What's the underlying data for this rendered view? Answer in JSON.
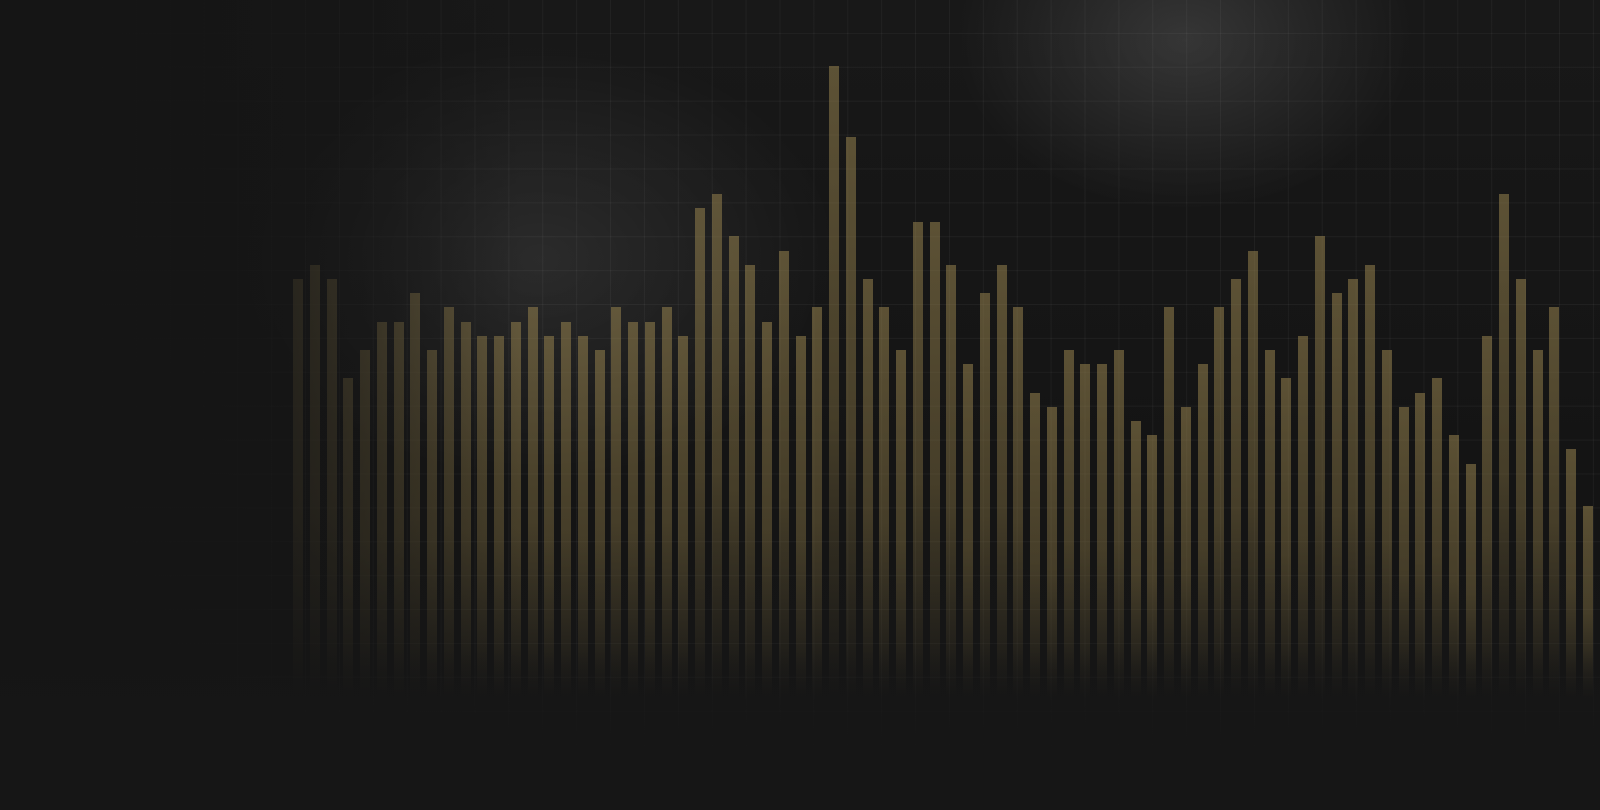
{
  "chart_data": {
    "type": "bar",
    "title": "",
    "xlabel": "",
    "ylabel": "",
    "grid": true,
    "color": "#8c7a4a",
    "background": "#151515",
    "values": [
      30,
      31,
      30,
      23,
      25,
      27,
      27,
      29,
      25,
      28,
      27,
      26,
      26,
      27,
      28,
      26,
      27,
      26,
      25,
      28,
      27,
      27,
      28,
      26,
      35,
      36,
      33,
      31,
      27,
      32,
      26,
      28,
      45,
      40,
      30,
      28,
      25,
      34,
      34,
      31,
      24,
      29,
      31,
      28,
      22,
      21,
      25,
      24,
      24,
      25,
      20,
      19,
      28,
      21,
      24,
      28,
      30,
      32,
      25,
      23,
      26,
      33,
      29,
      30,
      31,
      25,
      21,
      22,
      23,
      19,
      17,
      26,
      36,
      30,
      25,
      28,
      18,
      14
    ]
  }
}
